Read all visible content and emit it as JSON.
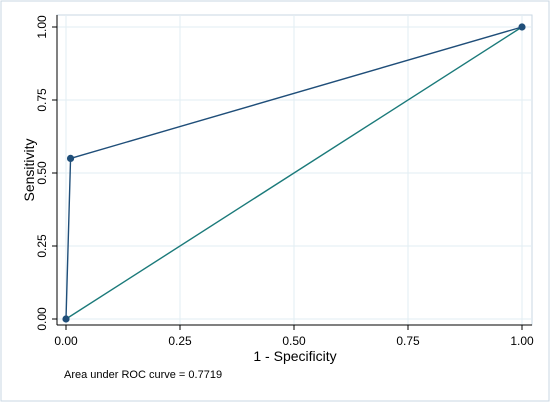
{
  "chart_data": {
    "type": "line",
    "xlabel": "1 - Specificity",
    "ylabel": "Sensitivity",
    "xlim": [
      0,
      1
    ],
    "ylim": [
      0,
      1
    ],
    "x_ticks": [
      "0.00",
      "0.25",
      "0.50",
      "0.75",
      "1.00"
    ],
    "y_ticks": [
      "0.00",
      "0.25",
      "0.50",
      "0.75",
      "1.00"
    ],
    "grid": true,
    "series": [
      {
        "role": "roc-curve",
        "x": [
          0.0,
          0.01,
          1.0
        ],
        "y": [
          0.0,
          0.55,
          1.0
        ],
        "markers": true,
        "color": "#1f4e79"
      },
      {
        "role": "reference-line",
        "x": [
          0.0,
          1.0
        ],
        "y": [
          0.0,
          1.0
        ],
        "markers": false,
        "color": "#1b7a7a"
      }
    ],
    "annotation": "Area under ROC curve = 0.7719"
  },
  "colors": {
    "frame": "#c9d7e3",
    "grid": "#e2edf3",
    "axis": "#000000"
  }
}
